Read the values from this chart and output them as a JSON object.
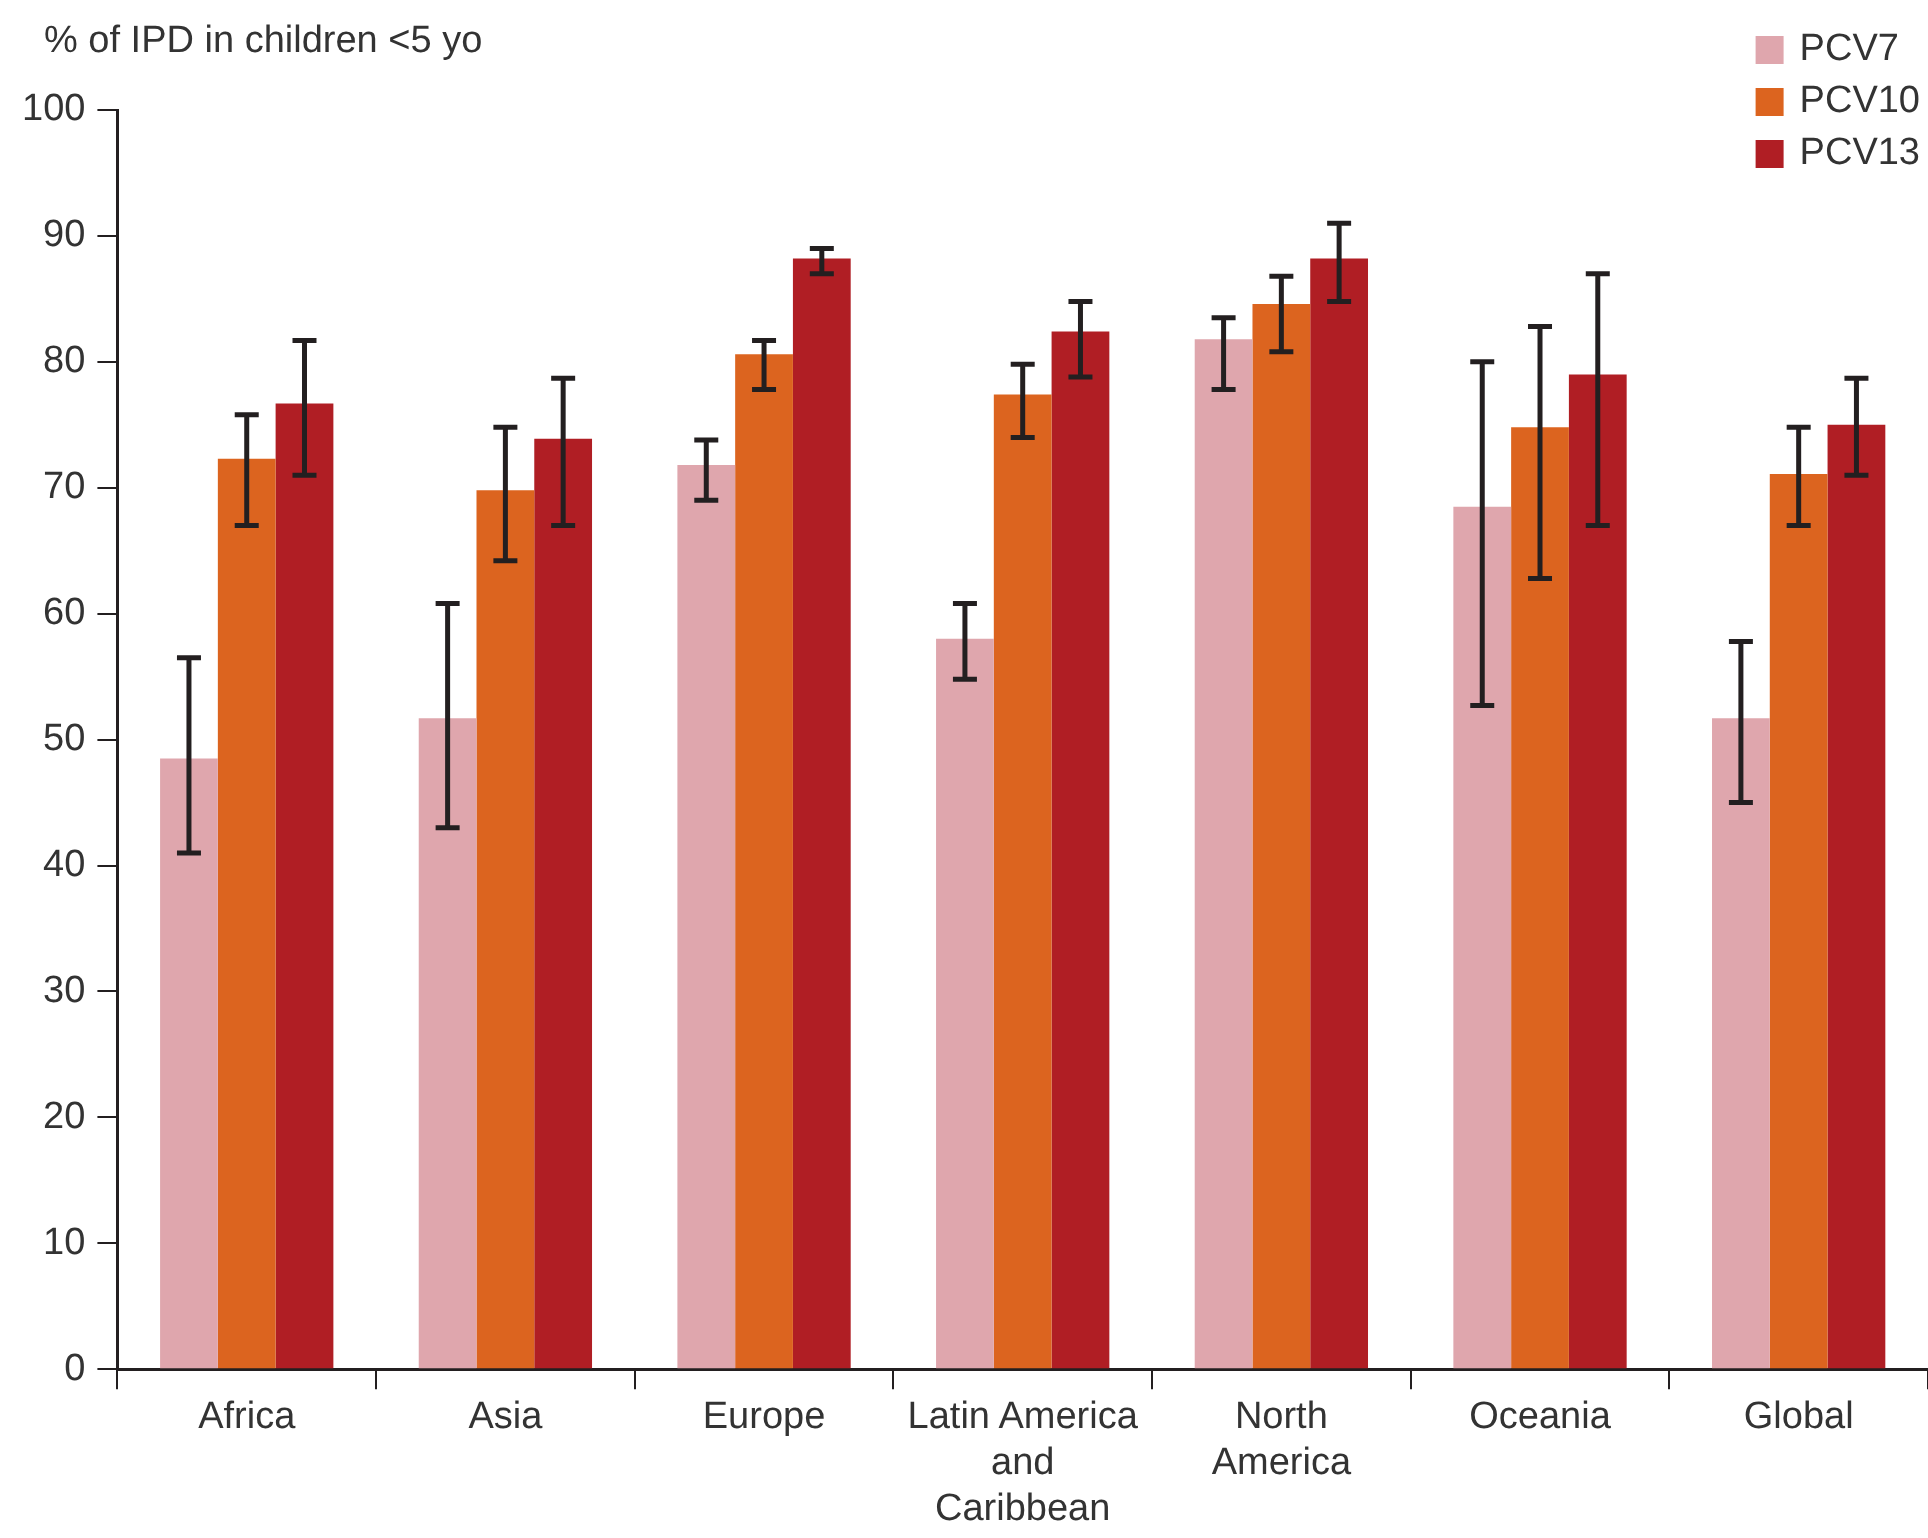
{
  "chart_data": {
    "type": "bar",
    "ylabel": "% of IPD in children <5 yo",
    "categories": [
      "Africa",
      "Asia",
      "Europe",
      "Latin America and Caribbean",
      "North America",
      "Oceania",
      "Global"
    ],
    "series": [
      {
        "name": "PCV7",
        "color": "#dfa6ad",
        "values": [
          48.5,
          51.7,
          71.8,
          58,
          81.8,
          68.5,
          51.7
        ],
        "errors": [
          [
            41,
            56.5
          ],
          [
            43,
            60.8
          ],
          [
            69,
            73.8
          ],
          [
            54.8,
            60.8
          ],
          [
            77.8,
            83.5
          ],
          [
            52.7,
            80
          ],
          [
            45,
            57.8
          ]
        ]
      },
      {
        "name": "PCV10",
        "color": "#dc641f",
        "values": [
          72.3,
          69.8,
          80.6,
          77.4,
          84.6,
          74.8,
          71.1
        ],
        "errors": [
          [
            67,
            75.8
          ],
          [
            64.2,
            74.8
          ],
          [
            77.8,
            81.7
          ],
          [
            74,
            79.8
          ],
          [
            80.8,
            86.8
          ],
          [
            62.8,
            82.8
          ],
          [
            67,
            74.8
          ]
        ]
      },
      {
        "name": "PCV13",
        "color": "#b01e24",
        "values": [
          76.7,
          73.9,
          88.2,
          82.4,
          88.2,
          79,
          75
        ],
        "errors": [
          [
            71,
            81.7
          ],
          [
            67,
            78.7
          ],
          [
            87,
            89
          ],
          [
            78.8,
            84.8
          ],
          [
            84.8,
            91
          ],
          [
            67,
            87
          ],
          [
            71,
            78.7
          ]
        ]
      }
    ],
    "ylim": [
      0,
      100
    ],
    "yticks": [
      0,
      10,
      20,
      30,
      40,
      50,
      60,
      70,
      80,
      90,
      100
    ],
    "grid": false,
    "legend": "top right"
  }
}
